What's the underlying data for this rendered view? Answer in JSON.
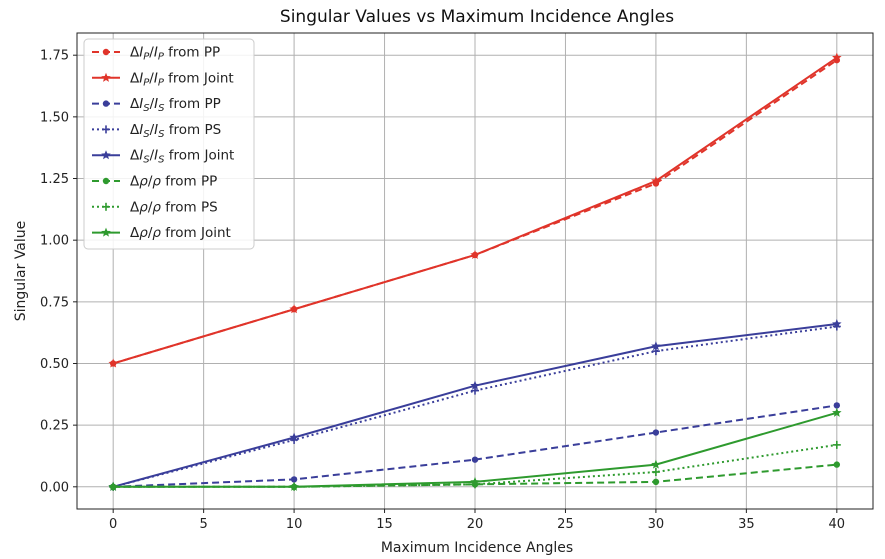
{
  "chart_data": {
    "type": "line",
    "title": "Singular Values vs Maximum Incidence Angles",
    "xlabel": "Maximum Incidence Angles",
    "ylabel": "Singular Value",
    "x": [
      0,
      10,
      20,
      30,
      40
    ],
    "xlim": [
      -2,
      42
    ],
    "ylim": [
      -0.09,
      1.84
    ],
    "xticks": [
      0,
      5,
      10,
      15,
      20,
      25,
      30,
      35,
      40
    ],
    "yticks": [
      0.0,
      0.25,
      0.5,
      0.75,
      1.0,
      1.25,
      1.5,
      1.75
    ],
    "ytick_labels": [
      "0.00",
      "0.25",
      "0.50",
      "0.75",
      "1.00",
      "1.25",
      "1.50",
      "1.75"
    ],
    "grid": true,
    "legend_position": "upper-left",
    "series": [
      {
        "name": "ΔIP/IP from PP",
        "sym": "ΔIP/IP",
        "sub": "P",
        "src": "from PP",
        "color": "#e0342a",
        "dash": "7,4",
        "marker": "dot",
        "values": [
          0.5,
          0.72,
          0.94,
          1.23,
          1.73
        ]
      },
      {
        "name": "ΔIP/IP from Joint",
        "sym": "ΔIP/IP",
        "sub": "P",
        "src": "from Joint",
        "color": "#e0342a",
        "dash": "",
        "marker": "star",
        "values": [
          0.5,
          0.72,
          0.94,
          1.24,
          1.74
        ]
      },
      {
        "name": "ΔIS/IS from PP",
        "sym": "ΔIS/IS",
        "sub": "S",
        "src": "from PP",
        "color": "#3a3e9a",
        "dash": "7,4",
        "marker": "dot",
        "values": [
          0.0,
          0.03,
          0.11,
          0.22,
          0.33
        ]
      },
      {
        "name": "ΔIS/IS from PS",
        "sym": "ΔIS/IS",
        "sub": "S",
        "src": "from PS",
        "color": "#3a3e9a",
        "dash": "2,3",
        "marker": "plus",
        "values": [
          0.0,
          0.19,
          0.39,
          0.55,
          0.65
        ]
      },
      {
        "name": "ΔIS/IS from Joint",
        "sym": "ΔIS/IS",
        "sub": "S",
        "src": "from Joint",
        "color": "#3a3e9a",
        "dash": "",
        "marker": "star",
        "values": [
          0.0,
          0.2,
          0.41,
          0.57,
          0.66
        ]
      },
      {
        "name": "Δρ/ρ from PP",
        "sym": "Δρ/ρ",
        "sub": "",
        "src": "from PP",
        "color": "#2e9a2e",
        "dash": "7,4",
        "marker": "dot",
        "values": [
          0.0,
          0.0,
          0.01,
          0.02,
          0.09
        ]
      },
      {
        "name": "Δρ/ρ from PS",
        "sym": "Δρ/ρ",
        "sub": "",
        "src": "from PS",
        "color": "#2e9a2e",
        "dash": "2,3",
        "marker": "plus",
        "values": [
          0.0,
          0.0,
          0.01,
          0.06,
          0.17
        ]
      },
      {
        "name": "Δρ/ρ from Joint",
        "sym": "Δρ/ρ",
        "sub": "",
        "src": "from Joint",
        "color": "#2e9a2e",
        "dash": "",
        "marker": "star",
        "values": [
          0.0,
          0.0,
          0.02,
          0.09,
          0.3
        ]
      }
    ]
  }
}
